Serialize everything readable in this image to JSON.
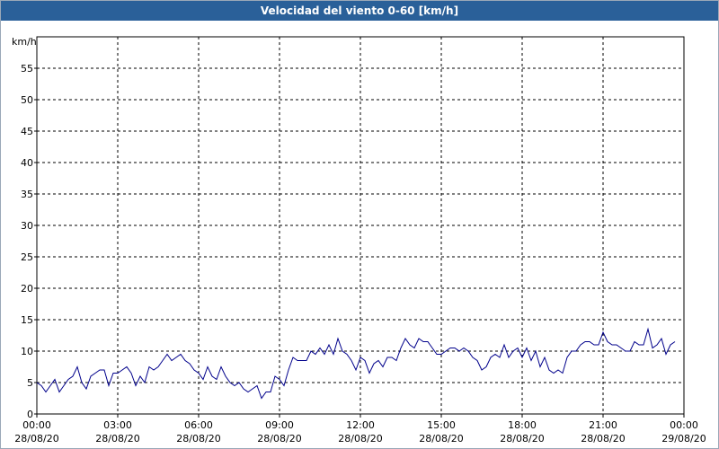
{
  "chart_data": {
    "type": "line",
    "title": "Velocidad del viento 0-60 [km/h]",
    "ylabel": "km/h",
    "x": [
      0,
      10,
      20,
      30,
      40,
      50,
      60,
      70,
      80,
      90,
      100,
      110,
      120,
      130,
      140,
      150,
      160,
      170,
      180,
      190,
      200,
      210,
      220,
      230,
      240,
      250,
      260,
      270,
      280,
      290,
      300,
      310,
      320,
      330,
      340,
      350,
      360,
      370,
      380,
      390,
      400,
      410,
      420,
      430,
      440,
      450,
      460,
      470,
      480,
      490,
      500,
      510,
      520,
      530,
      540,
      550,
      560,
      570,
      580,
      590,
      600,
      610,
      620,
      630,
      640,
      650,
      660,
      670,
      680,
      690,
      700,
      710,
      720,
      730,
      740,
      750,
      760,
      770,
      780,
      790,
      800,
      810,
      820,
      830,
      840,
      850,
      860,
      870,
      880,
      890,
      900,
      910,
      920,
      930,
      940,
      950,
      960,
      970,
      980,
      990,
      1000,
      1010,
      1020,
      1030,
      1040,
      1050,
      1060,
      1070,
      1080,
      1090,
      1100,
      1110,
      1120,
      1130,
      1140,
      1150,
      1160,
      1170,
      1180,
      1190,
      1200,
      1210,
      1220,
      1230,
      1240,
      1250,
      1260,
      1270,
      1280,
      1290,
      1300,
      1310,
      1320,
      1330,
      1340,
      1350,
      1360,
      1370,
      1380,
      1390,
      1400,
      1410,
      1420
    ],
    "series": [
      {
        "name": "Velocidad del viento",
        "color": "#00008b",
        "values": [
          5,
          4.5,
          3.5,
          4.5,
          5.5,
          3.5,
          4.5,
          5.5,
          6,
          7.5,
          5,
          4,
          6,
          6.5,
          7,
          7,
          4.5,
          6.5,
          6.5,
          7,
          7.5,
          6.5,
          4.5,
          6,
          5,
          7.5,
          7,
          7.5,
          8.5,
          9.5,
          8.5,
          9,
          9.5,
          8.5,
          8,
          7,
          6.5,
          5.5,
          7.5,
          6,
          5.5,
          7.5,
          6,
          5,
          4.5,
          5,
          4,
          3.5,
          4,
          4.5,
          2.5,
          3.5,
          3.5,
          6,
          5.5,
          4.5,
          7,
          9,
          8.5,
          8.5,
          8.5,
          10,
          9.5,
          10.5,
          9.5,
          11,
          9.5,
          12,
          10,
          9.5,
          8.5,
          7,
          9,
          8.5,
          6.5,
          8,
          8.5,
          7.5,
          9,
          9,
          8.5,
          10.5,
          12,
          11,
          10.5,
          12,
          11.5,
          11.5,
          10.5,
          9.5,
          9.5,
          10,
          10.5,
          10.5,
          10,
          10.5,
          10,
          9,
          8.5,
          7,
          7.5,
          9,
          9.5,
          9,
          11,
          9,
          10,
          10.5,
          9,
          10.5,
          8.5,
          10,
          7.5,
          9,
          7,
          6.5,
          7,
          6.5,
          9,
          10,
          10,
          11,
          11.5,
          11.5,
          11,
          11,
          13,
          11.5,
          11,
          11,
          10.5,
          10,
          10,
          11.5,
          11,
          11,
          13.5,
          10.5,
          11,
          12,
          9.5,
          11,
          11.5
        ]
      }
    ],
    "xlim": [
      0,
      1440
    ],
    "xticks": [
      {
        "value": 0,
        "label": "00:00",
        "sublabel": "28/08/20"
      },
      {
        "value": 180,
        "label": "03:00",
        "sublabel": "28/08/20"
      },
      {
        "value": 360,
        "label": "06:00",
        "sublabel": "28/08/20"
      },
      {
        "value": 540,
        "label": "09:00",
        "sublabel": "28/08/20"
      },
      {
        "value": 720,
        "label": "12:00",
        "sublabel": "28/08/20"
      },
      {
        "value": 900,
        "label": "15:00",
        "sublabel": "28/08/20"
      },
      {
        "value": 1080,
        "label": "18:00",
        "sublabel": "28/08/20"
      },
      {
        "value": 1260,
        "label": "21:00",
        "sublabel": "28/08/20"
      },
      {
        "value": 1440,
        "label": "00:00",
        "sublabel": "29/08/20"
      }
    ],
    "ylim": [
      0,
      60
    ],
    "yticks": [
      0,
      5,
      10,
      15,
      20,
      25,
      30,
      35,
      40,
      45,
      50,
      55
    ],
    "grid": true
  }
}
